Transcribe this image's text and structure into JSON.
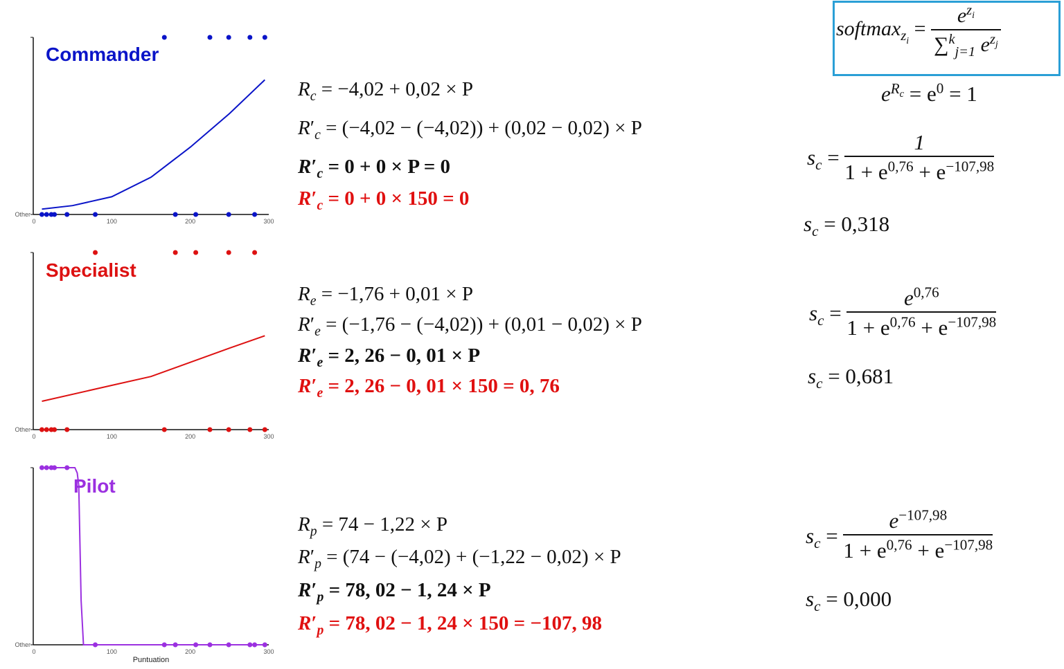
{
  "chart_data": [
    {
      "type": "scatter",
      "title": "Commander",
      "color": "#0a14c8",
      "xlabel": "",
      "xlim": [
        0,
        300
      ],
      "ylim": [
        0,
        1
      ],
      "xticks": [
        "0",
        "100",
        "200",
        "300"
      ],
      "yticks": [
        "Other"
      ],
      "points_class1_x": [
        167,
        225,
        249,
        276,
        295
      ],
      "points_class0_x": [
        11,
        17,
        23,
        27,
        43,
        79,
        181,
        207,
        249,
        282
      ],
      "curve": [
        [
          11,
          0.03
        ],
        [
          50,
          0.05
        ],
        [
          100,
          0.1
        ],
        [
          150,
          0.21
        ],
        [
          200,
          0.38
        ],
        [
          250,
          0.57
        ],
        [
          295,
          0.76
        ]
      ]
    },
    {
      "type": "scatter",
      "title": "Specialist",
      "color": "#dd1111",
      "xlabel": "",
      "xlim": [
        0,
        300
      ],
      "ylim": [
        0,
        1
      ],
      "xticks": [
        "0",
        "100",
        "200",
        "300"
      ],
      "yticks": [
        "Other"
      ],
      "points_class1_x": [
        79,
        181,
        207,
        249,
        282
      ],
      "points_class0_x": [
        11,
        17,
        23,
        27,
        43,
        167,
        225,
        249,
        276,
        295
      ],
      "curve": [
        [
          11,
          0.16
        ],
        [
          100,
          0.25
        ],
        [
          150,
          0.3
        ],
        [
          200,
          0.38
        ],
        [
          250,
          0.46
        ],
        [
          295,
          0.53
        ]
      ]
    },
    {
      "type": "scatter",
      "title": "Pilot",
      "color": "#9b30e0",
      "xlabel": "Puntuation",
      "xlim": [
        0,
        300
      ],
      "ylim": [
        0,
        1
      ],
      "xticks": [
        "0",
        "100",
        "200",
        "300"
      ],
      "yticks": [
        "Other"
      ],
      "points_class1_x": [
        11,
        17,
        23,
        27,
        43
      ],
      "points_class0_x": [
        79,
        167,
        181,
        207,
        225,
        249,
        276,
        282,
        295
      ],
      "curve": [
        [
          11,
          1
        ],
        [
          53,
          1
        ],
        [
          56,
          0.97
        ],
        [
          58,
          0.9
        ],
        [
          61,
          0.25
        ],
        [
          64,
          0
        ],
        [
          295,
          0
        ]
      ]
    }
  ],
  "equations": {
    "commander": [
      {
        "var": "R",
        "prime": "",
        "sub": "c",
        "rhs": " = −4,02 + 0,02 × P"
      },
      {
        "var": "R",
        "prime": "′",
        "sub": "c",
        "rhs": " = (−4,02  − (−4,02)) + (0,02 − 0,02) × P"
      },
      {
        "var": "R",
        "prime": "′",
        "sub": "c",
        "rhs": " = 0 + 0 × P = 0"
      },
      {
        "var": "R",
        "prime": "′",
        "sub": "c",
        "rhs": " = 0 + 0 × 150 = 0"
      }
    ],
    "specialist": [
      {
        "var": "R",
        "prime": "",
        "sub": "e",
        "rhs": " = −1,76 + 0,01 × P"
      },
      {
        "var": "R",
        "prime": "′",
        "sub": "e",
        "rhs": " = (−1,76 − (−4,02)) + (0,01 − 0,02) × P"
      },
      {
        "var": "R",
        "prime": "′",
        "sub": "e",
        "rhs": " = 2, 26 − 0, 01 × P"
      },
      {
        "var": "R",
        "prime": "′",
        "sub": "e",
        "rhs": " = 2, 26 − 0, 01 × 150 = 0, 76"
      }
    ],
    "pilot": [
      {
        "var": "R",
        "prime": "",
        "sub": "p",
        "rhs": " = 74 − 1,22 × P"
      },
      {
        "var": "R",
        "prime": "′",
        "sub": "p",
        "rhs": " = (74 − (−4,02) + (−1,22 − 0,02) × P"
      },
      {
        "var": "R",
        "prime": "′",
        "sub": "p",
        "rhs": " = 78, 02 − 1, 24 × P"
      },
      {
        "var": "R",
        "prime": "′",
        "sub": "p",
        "rhs": " = 78, 02 − 1, 24 × 150 = −107, 98"
      }
    ]
  },
  "softmax": {
    "lhs": "softmax",
    "lhs_sub": "z",
    "lhs_subsub": "i",
    "eq": " = ",
    "num_base": "e",
    "num_sup": "z",
    "num_supsub": "i",
    "den_sum": "∑",
    "den_sum_sup": "k",
    "den_sum_sub": "j=1",
    "den_base": " e",
    "den_sup": "z",
    "den_supsub": "j"
  },
  "exp_rc": {
    "base": "e",
    "sup": "R",
    "supsub": "c",
    "rhs1": " = e",
    "rhs1_sup": "0",
    "rhs2": " = 1"
  },
  "scores": [
    {
      "lhs": "s",
      "lhs_sub": "c",
      "num_base": "1",
      "num_sup": "",
      "den": "1 + e",
      "den_sup1": "0,76",
      "den_mid": " + e",
      "den_sup2": "−107,98",
      "result": "0,318"
    },
    {
      "lhs": "s",
      "lhs_sub": "c",
      "num_base": "e",
      "num_sup": "0,76",
      "den": "1 + e",
      "den_sup1": "0,76",
      "den_mid": " + e",
      "den_sup2": "−107,98",
      "result": "0,681"
    },
    {
      "lhs": "s",
      "lhs_sub": "c",
      "num_base": "e",
      "num_sup": "−107,98",
      "den": "1 + e",
      "den_sup1": "0,76",
      "den_mid": " + e",
      "den_sup2": "−107,98",
      "result": "0,000"
    }
  ],
  "eq_sign": " = "
}
